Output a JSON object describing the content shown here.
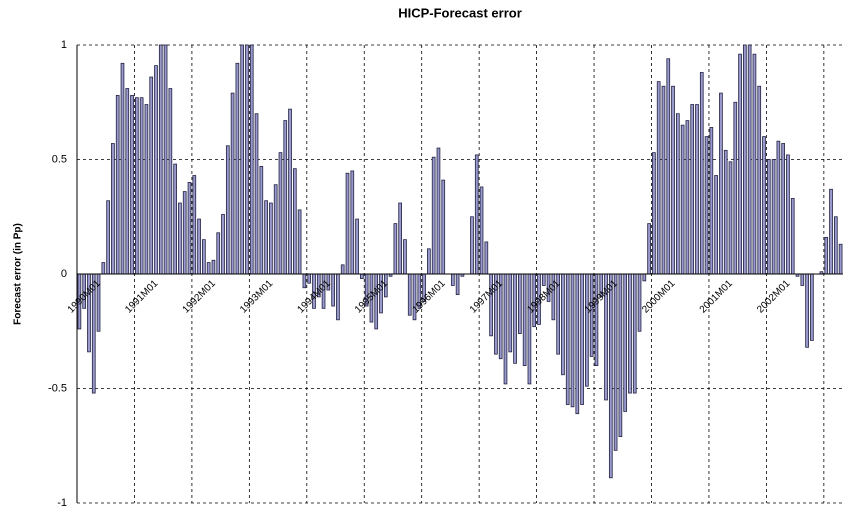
{
  "chart_data": {
    "type": "bar",
    "title": "HICP-Forecast error",
    "y_label": "Forecast error (in Pp)",
    "categories": [
      "1990M01",
      null,
      null,
      null,
      null,
      null,
      null,
      null,
      null,
      null,
      null,
      null,
      "1991M01",
      null,
      null,
      null,
      null,
      null,
      null,
      null,
      null,
      null,
      null,
      null,
      "1992M01",
      null,
      null,
      null,
      null,
      null,
      null,
      null,
      null,
      null,
      null,
      null,
      "1993M01",
      null,
      null,
      null,
      null,
      null,
      null,
      null,
      null,
      null,
      null,
      null,
      "1994M01",
      null,
      null,
      null,
      null,
      null,
      null,
      null,
      null,
      null,
      null,
      null,
      "1995M01",
      null,
      null,
      null,
      null,
      null,
      null,
      null,
      null,
      null,
      null,
      null,
      "1996M01",
      null,
      null,
      null,
      null,
      null,
      null,
      null,
      null,
      null,
      null,
      null,
      "1997M01",
      null,
      null,
      null,
      null,
      null,
      null,
      null,
      null,
      null,
      null,
      null,
      "1998M01",
      null,
      null,
      null,
      null,
      null,
      null,
      null,
      null,
      null,
      null,
      null,
      "1999M01",
      null,
      null,
      null,
      null,
      null,
      null,
      null,
      null,
      null,
      null,
      null,
      "2000M01",
      null,
      null,
      null,
      null,
      null,
      null,
      null,
      null,
      null,
      null,
      null,
      "2001M01",
      null,
      null,
      null,
      null,
      null,
      null,
      null,
      null,
      null,
      null,
      null,
      "2002M01",
      null,
      null,
      null,
      null,
      null,
      null,
      null,
      null,
      null,
      null,
      null,
      null,
      null,
      null,
      null
    ],
    "values": [
      -0.24,
      -0.15,
      -0.34,
      -0.52,
      -0.25,
      0.05,
      0.32,
      0.57,
      0.78,
      0.92,
      0.81,
      0.78,
      0.77,
      0.77,
      0.74,
      0.86,
      0.91,
      1.0,
      1.0,
      0.81,
      0.48,
      0.31,
      0.36,
      0.4,
      0.43,
      0.24,
      0.15,
      0.05,
      0.06,
      0.18,
      0.26,
      0.56,
      0.79,
      0.92,
      1.0,
      1.0,
      1.0,
      0.7,
      0.47,
      0.32,
      0.31,
      0.39,
      0.53,
      0.67,
      0.72,
      0.46,
      0.28,
      -0.06,
      -0.04,
      -0.15,
      -0.1,
      -0.15,
      -0.07,
      -0.14,
      -0.2,
      0.04,
      0.44,
      0.45,
      0.24,
      -0.02,
      -0.14,
      -0.21,
      -0.24,
      -0.17,
      -0.1,
      -0.01,
      0.22,
      0.31,
      0.15,
      -0.18,
      -0.2,
      -0.15,
      -0.12,
      0.11,
      0.51,
      0.55,
      0.41,
      0.0,
      -0.05,
      -0.09,
      -0.01,
      0.0,
      0.25,
      0.52,
      0.38,
      0.14,
      -0.27,
      -0.35,
      -0.37,
      -0.48,
      -0.34,
      -0.39,
      -0.26,
      -0.4,
      -0.48,
      -0.23,
      -0.22,
      -0.05,
      -0.12,
      -0.2,
      -0.35,
      -0.44,
      -0.57,
      -0.58,
      -0.61,
      -0.57,
      -0.49,
      -0.36,
      -0.4,
      -0.1,
      -0.55,
      -0.89,
      -0.77,
      -0.71,
      -0.6,
      -0.52,
      -0.52,
      -0.25,
      -0.03,
      0.22,
      0.53,
      0.84,
      0.82,
      0.94,
      0.82,
      0.7,
      0.65,
      0.67,
      0.74,
      0.74,
      0.88,
      0.6,
      0.64,
      0.43,
      0.79,
      0.54,
      0.49,
      0.75,
      0.96,
      1.0,
      1.0,
      0.96,
      0.82,
      0.6,
      0.5,
      0.5,
      0.58,
      0.57,
      0.52,
      0.33,
      -0.01,
      -0.05,
      -0.32,
      -0.29,
      0.0,
      0.01,
      0.16,
      0.37,
      0.25,
      0.13
    ],
    "color": "#9999cc",
    "ylim": [
      -1,
      1
    ],
    "yticks": [
      -1,
      -0.5,
      0,
      0.5,
      1
    ],
    "grid": true
  }
}
